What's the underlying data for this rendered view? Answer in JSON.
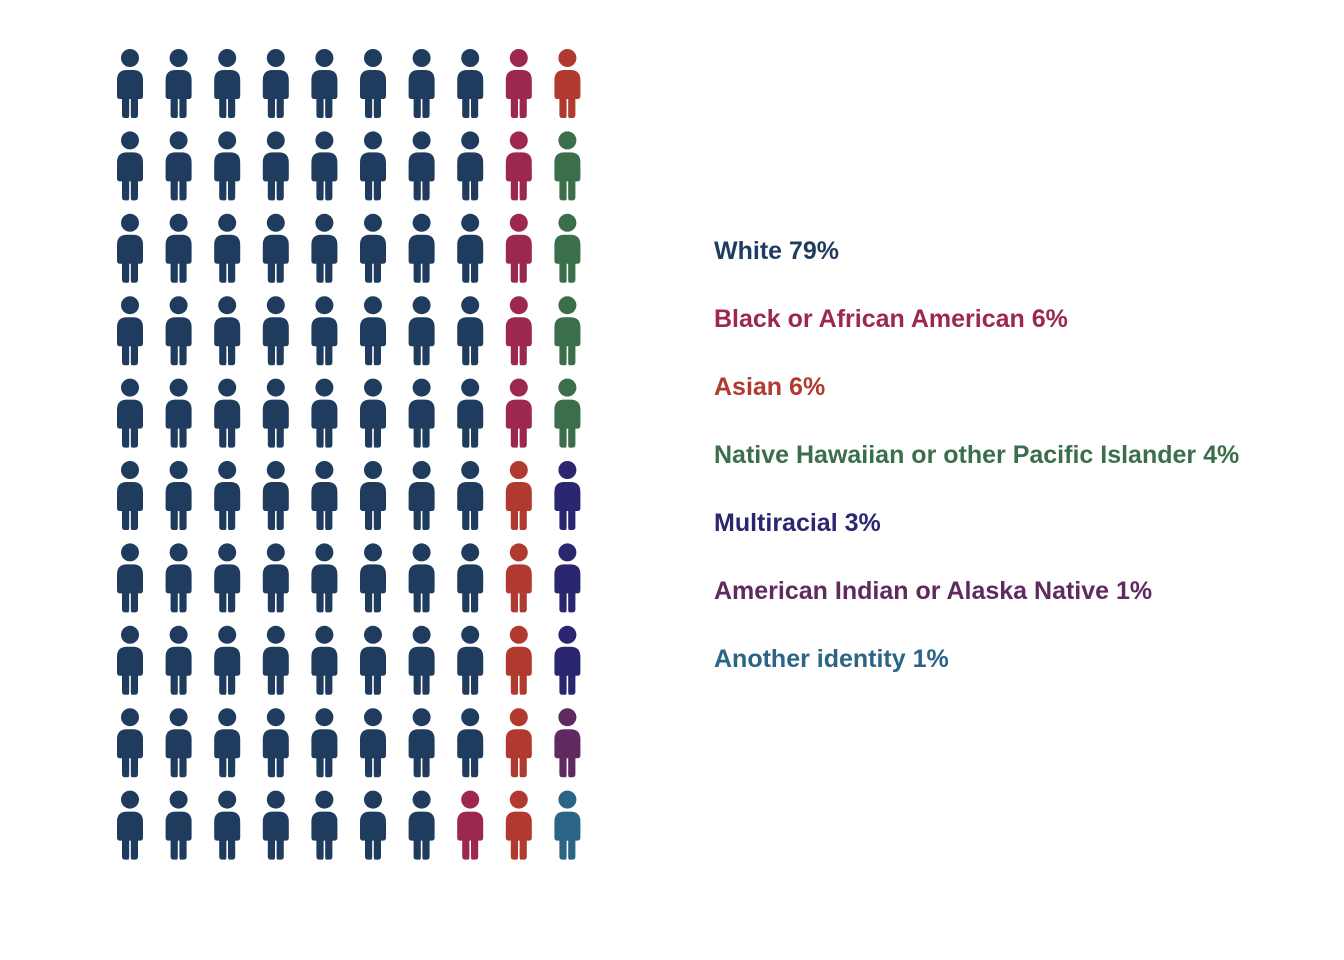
{
  "chart_data": {
    "type": "pictogram",
    "series": [
      {
        "name": "White",
        "color": "#1f3c5e",
        "value": 79,
        "value_label": "79%"
      },
      {
        "name": "Black or African American",
        "color": "#9c2750",
        "value": 6,
        "value_label": "6%"
      },
      {
        "name": "Asian",
        "color": "#b03a30",
        "value": 6,
        "value_label": "6%"
      },
      {
        "name": "Native Hawaiian or other Pacific Islander",
        "color": "#3b6e4b",
        "value": 4,
        "value_label": "4%"
      },
      {
        "name": "Multiracial",
        "color": "#2b2670",
        "value": 3,
        "value_label": "3%"
      },
      {
        "name": "American Indian or Alaska Native",
        "color": "#5f2a5f",
        "value": 1,
        "value_label": "1%"
      },
      {
        "name": "Another identity",
        "color": "#2b6585",
        "value": 1,
        "value_label": "1%"
      }
    ]
  }
}
